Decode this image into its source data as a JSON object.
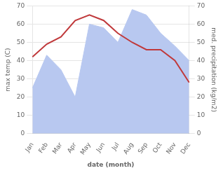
{
  "chart_data": {
    "type": "line",
    "categories": [
      "Jan",
      "Feb",
      "Mar",
      "Apr",
      "May",
      "Jun",
      "Jul",
      "Aug",
      "Sep",
      "Oct",
      "Nov",
      "Dec"
    ],
    "series": [
      {
        "type": "area",
        "color": "#b8c8f0",
        "axis": "y2",
        "values": [
          25,
          43,
          35,
          20,
          60,
          58,
          50,
          68,
          65,
          55,
          48,
          40
        ]
      },
      {
        "type": "line",
        "color": "#c0393b",
        "values": [
          42,
          49,
          53,
          62,
          65,
          62,
          55,
          50,
          46,
          46,
          40,
          28
        ]
      }
    ],
    "xlabel": "date (month)",
    "ylabel": "max temp (C)",
    "y2label": "med. precipitation (kg/m2)",
    "ylim": [
      0,
      70
    ],
    "yticks": [
      0,
      10,
      20,
      30,
      40,
      50,
      60,
      70
    ],
    "y2lim": [
      0,
      70
    ],
    "y2ticks": [
      0,
      10,
      20,
      30,
      40,
      50,
      60,
      70
    ],
    "grid": true
  }
}
